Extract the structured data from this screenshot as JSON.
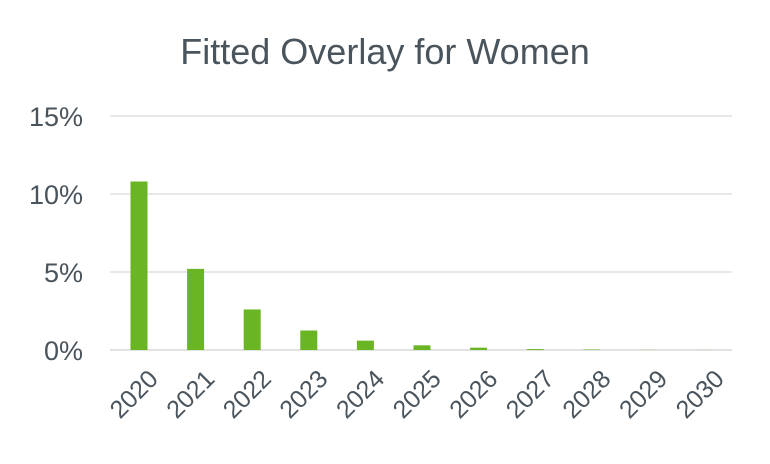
{
  "chart_data": {
    "type": "bar",
    "title": "Fitted Overlay for Women",
    "xlabel": "",
    "ylabel": "",
    "categories": [
      "2020",
      "2021",
      "2022",
      "2023",
      "2024",
      "2025",
      "2026",
      "2027",
      "2028",
      "2029",
      "2030"
    ],
    "series": [
      {
        "values": [
          10.8,
          5.2,
          2.6,
          1.25,
          0.6,
          0.3,
          0.15,
          0.06,
          0.03,
          0.01,
          0.005
        ]
      }
    ],
    "y_ticks": [
      "0%",
      "5%",
      "10%",
      "15%"
    ],
    "y_tick_values": [
      0,
      5,
      10,
      15
    ],
    "ylim": [
      0,
      15
    ],
    "y_unit": "%",
    "grid": true,
    "legend": "none",
    "bar_color": "#6ab524",
    "gridline_color": "#d9d9d9",
    "text_color": "#4a545c"
  }
}
